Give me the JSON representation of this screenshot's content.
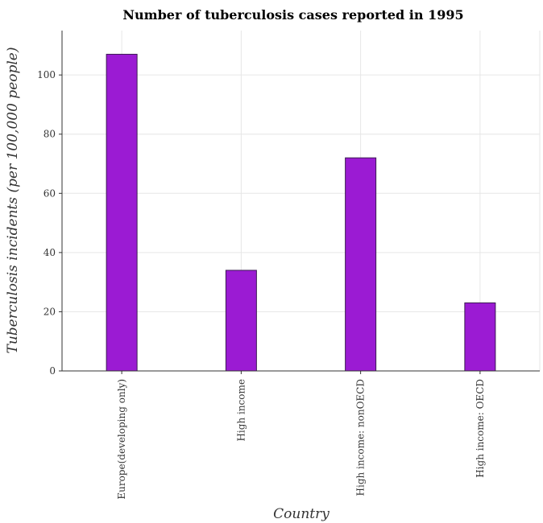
{
  "chart_data": {
    "type": "bar",
    "title": "Number of tuberculosis cases reported in 1995",
    "xlabel": "Country",
    "ylabel": "Tuberculosis incidents (per 100,000 people)",
    "categories": [
      "Europe(developing only)",
      "High income",
      "High income: nonOECD",
      "High income: OECD"
    ],
    "values": [
      107,
      34,
      72,
      23
    ],
    "ylim": [
      0,
      115
    ],
    "yticks": [
      0,
      20,
      40,
      60,
      80,
      100
    ],
    "grid": true,
    "bar_color": "#9b1bd3"
  }
}
